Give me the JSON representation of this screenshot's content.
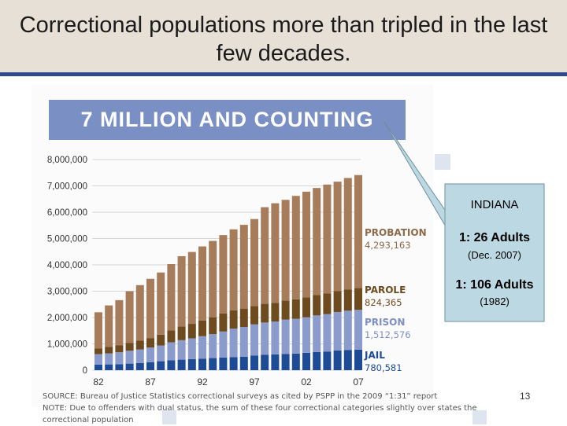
{
  "slide": {
    "title": "Correctional populations more than tripled in the last few decades.",
    "page_number": "13"
  },
  "callout": {
    "title": "INDIANA",
    "line1": "1: 26 Adults",
    "line2": "(Dec. 2007)",
    "line3": "1: 106 Adults",
    "line4": "(1982)"
  },
  "source": {
    "line1": "SOURCE: Bureau of Justice Statistics correctional surveys as cited by PSPP in the 2009 “1:31” report",
    "line2": "NOTE: Due to offenders with dual status, the sum of these four correctional categories slightly over states the correctional population"
  },
  "chart_data": {
    "type": "bar",
    "stacked": true,
    "title": "7 MILLION AND COUNTING",
    "ylim": [
      0,
      8000000
    ],
    "y_ticks": [
      0,
      1000000,
      2000000,
      3000000,
      4000000,
      5000000,
      6000000,
      7000000,
      8000000
    ],
    "y_tick_labels": [
      "0",
      "1,000,000",
      "2,000,000",
      "3,000,000",
      "4,000,000",
      "5,000,000",
      "6,000,000",
      "7,000,000",
      "8,000,000"
    ],
    "x": [
      1982,
      1983,
      1984,
      1985,
      1986,
      1987,
      1988,
      1989,
      1990,
      1991,
      1992,
      1993,
      1994,
      1995,
      1996,
      1997,
      1998,
      1999,
      2000,
      2001,
      2002,
      2003,
      2004,
      2005,
      2006,
      2007
    ],
    "x_tick_labels": [
      "82",
      "87",
      "92",
      "97",
      "02",
      "07"
    ],
    "series": [
      {
        "name": "JAIL",
        "color": "#1e4b96",
        "values": [
          210000,
          220000,
          230000,
          250000,
          270000,
          300000,
          340000,
          380000,
          400000,
          420000,
          440000,
          460000,
          480000,
          500000,
          510000,
          560000,
          590000,
          600000,
          620000,
          630000,
          660000,
          690000,
          710000,
          750000,
          770000,
          780581
        ]
      },
      {
        "name": "PRISON",
        "color": "#8b9bcc",
        "values": [
          400000,
          420000,
          450000,
          490000,
          520000,
          560000,
          600000,
          680000,
          740000,
          790000,
          850000,
          910000,
          990000,
          1080000,
          1130000,
          1180000,
          1220000,
          1250000,
          1300000,
          1320000,
          1350000,
          1390000,
          1420000,
          1460000,
          1490000,
          1512576
        ]
      },
      {
        "name": "PAROLE",
        "color": "#6e4b1e",
        "values": [
          220000,
          240000,
          260000,
          300000,
          330000,
          360000,
          410000,
          450000,
          520000,
          550000,
          600000,
          640000,
          680000,
          690000,
          700000,
          700000,
          710000,
          710000,
          720000,
          740000,
          750000,
          770000,
          780000,
          790000,
          800000,
          824365
        ]
      },
      {
        "name": "PROBATION",
        "color": "#a67c5a",
        "values": [
          1370000,
          1580000,
          1720000,
          1960000,
          2110000,
          2250000,
          2360000,
          2520000,
          2670000,
          2730000,
          2810000,
          2900000,
          2980000,
          3080000,
          3180000,
          3300000,
          3670000,
          3780000,
          3830000,
          3930000,
          4020000,
          4070000,
          4140000,
          4160000,
          4240000,
          4293163
        ]
      }
    ],
    "legend": [
      {
        "name": "PROBATION",
        "value": "4,293,163",
        "color": "#8c6a4a"
      },
      {
        "name": "PAROLE",
        "value": "824,365",
        "color": "#6e4b1e"
      },
      {
        "name": "PRISON",
        "value": "1,512,576",
        "color": "#7d8fc2"
      },
      {
        "name": "JAIL",
        "value": "780,581",
        "color": "#1e4b96"
      }
    ]
  }
}
